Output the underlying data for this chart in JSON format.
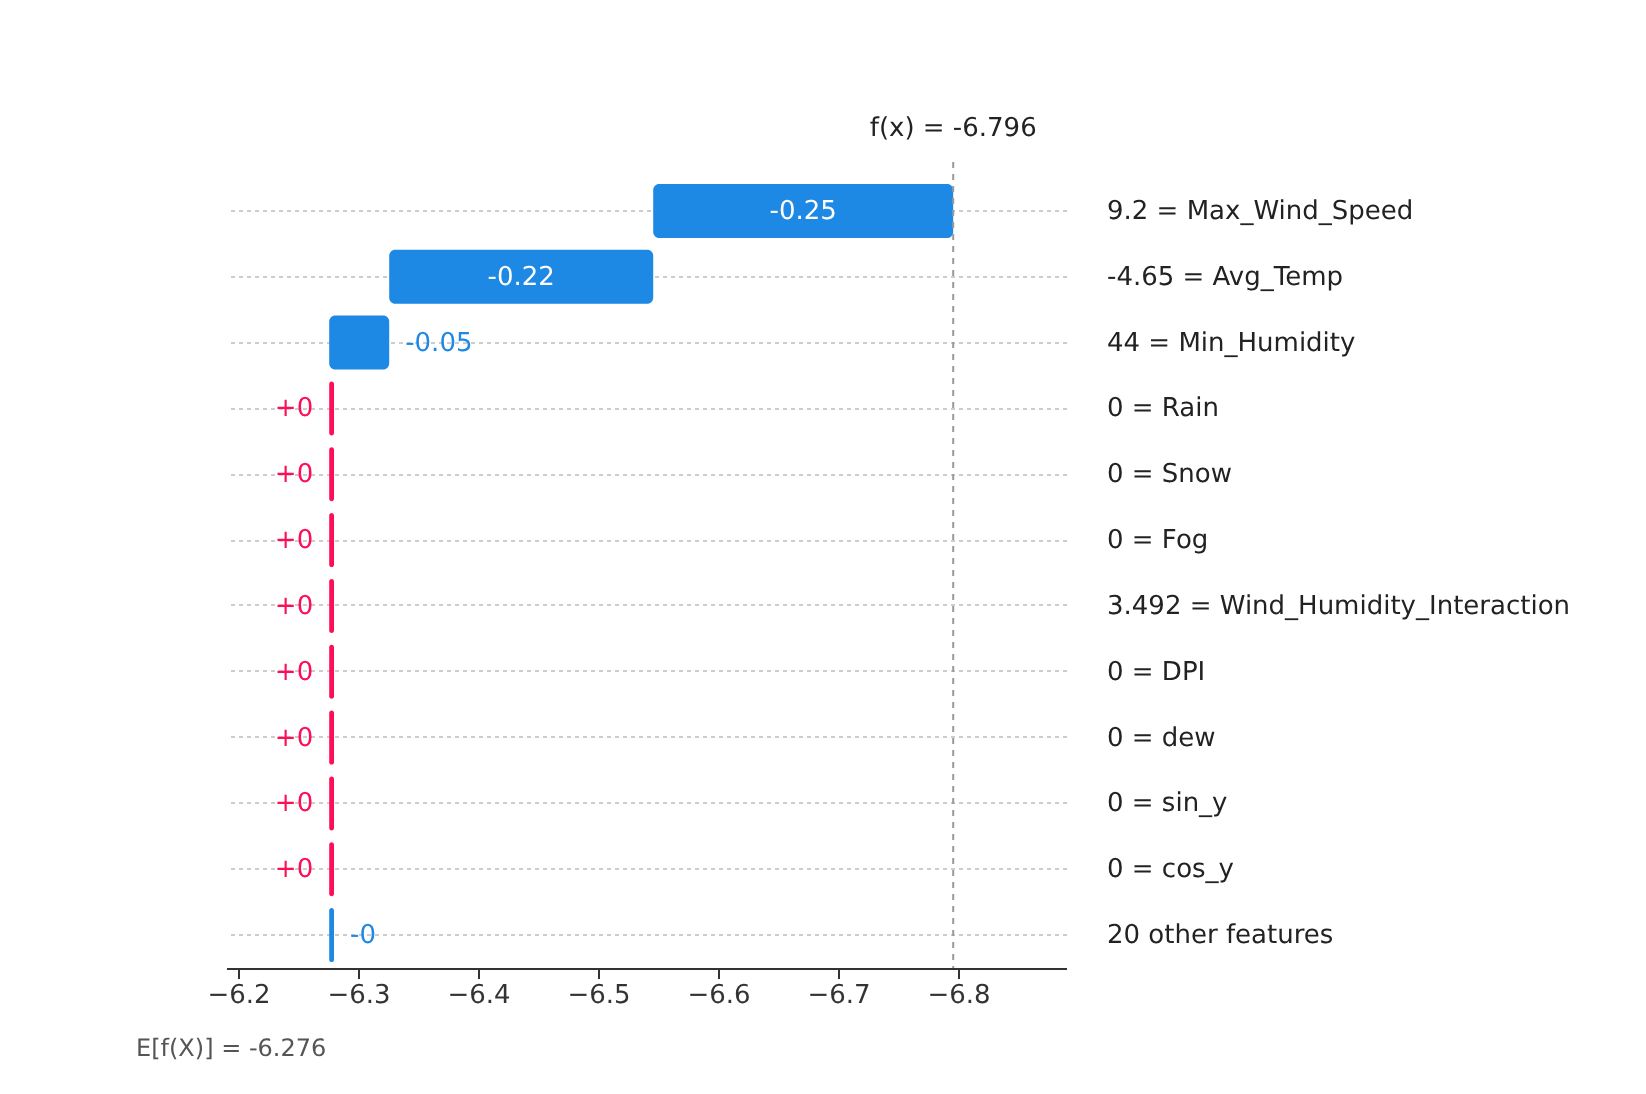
{
  "chart_data": {
    "type": "bar",
    "orientation": "horizontal",
    "categories": [
      "9.2 = Max_Wind_Speed",
      "-4.65 = Avg_Temp",
      "44 = Min_Humidity",
      "0 = Rain",
      "0 = Snow",
      "0 = Fog",
      "3.492 = Wind_Humidity_Interaction",
      "0 = DPI",
      "0 = dew",
      "0 = sin_y",
      "0 = cos_y",
      "20 other features"
    ],
    "base": [
      -6.546,
      -6.326,
      -6.276,
      -6.28,
      -6.28,
      -6.28,
      -6.28,
      -6.28,
      -6.28,
      -6.28,
      -6.28,
      -6.276
    ],
    "values": [
      -0.25,
      -0.22,
      -0.05,
      0.004,
      0.004,
      0.004,
      0.004,
      0.004,
      0.004,
      0.004,
      0.004,
      -0.004
    ],
    "colors": [
      "#1e88e5",
      "#1e88e5",
      "#1e88e5",
      "#ff0d57",
      "#ff0d57",
      "#ff0d57",
      "#ff0d57",
      "#ff0d57",
      "#ff0d57",
      "#ff0d57",
      "#ff0d57",
      "#1e88e5"
    ],
    "value_labels": [
      "-0.25",
      "-0.22",
      "-0.05",
      "+0",
      "+0",
      "+0",
      "+0",
      "+0",
      "+0",
      "+0",
      "+0",
      "-0"
    ],
    "xlim": [
      -6.19,
      -6.89
    ],
    "xticks": [
      {
        "value": -6.2,
        "label": "−6.2"
      },
      {
        "value": -6.3,
        "label": "−6.3"
      },
      {
        "value": -6.4,
        "label": "−6.4"
      },
      {
        "value": -6.5,
        "label": "−6.5"
      },
      {
        "value": -6.6,
        "label": "−6.6"
      },
      {
        "value": -6.7,
        "label": "−6.7"
      },
      {
        "value": -6.8,
        "label": "−6.8"
      }
    ],
    "grid": "y",
    "ref_lines": [
      {
        "axis": "x",
        "value": -6.796,
        "label": "f(x) = -6.796",
        "line_style": "dashed",
        "color": "#999999"
      }
    ],
    "annotations": [
      "E[f(X)] = -6.276"
    ]
  }
}
